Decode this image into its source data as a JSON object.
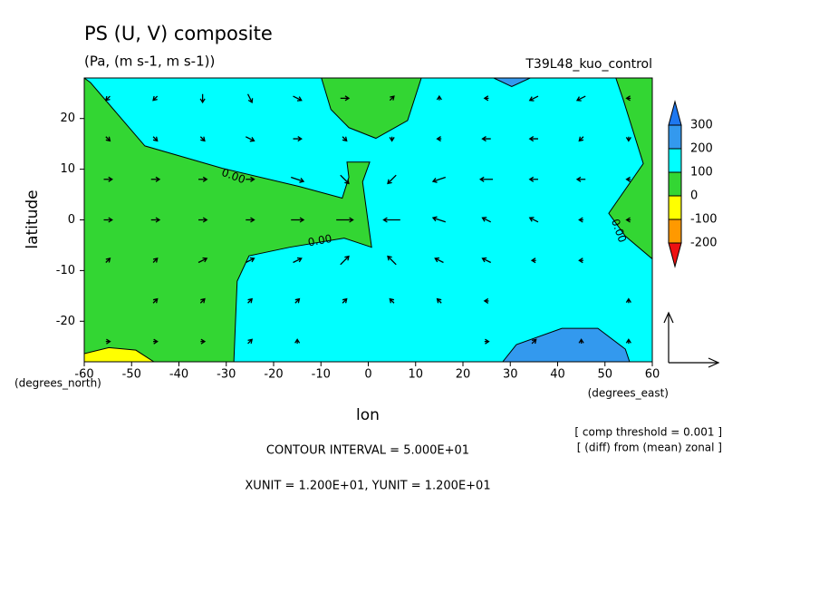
{
  "chart_data": {
    "type": "contour",
    "title": "PS (U, V) composite",
    "subtitle": "(Pa, (m s-1, m s-1))",
    "run": "T39L48_kuo_control",
    "x_label": "lon",
    "y_label": "latitude",
    "x_units": "(degrees_east)",
    "y_units": "(degrees_north)",
    "notes": [
      "[ comp threshold = 0.001 ]",
      "[ (diff) from (mean) zonal ]"
    ],
    "contour_interval": "CONTOUR INTERVAL = 5.000E+01",
    "vector_units": "XUNIT = 1.200E+01, YUNIT = 1.200E+01",
    "xlim": [
      -60,
      60
    ],
    "ylim": [
      -28,
      28
    ],
    "xticks": [
      -60,
      -50,
      -40,
      -30,
      -20,
      -10,
      0,
      10,
      20,
      30,
      40,
      50,
      60
    ],
    "yticks": [
      -20,
      -10,
      0,
      10,
      20
    ],
    "background_color": "#00ffff",
    "regions": [
      {
        "color": "#33d633",
        "lon": [
          -60,
          -58.7,
          -47.2,
          -30.9,
          -14.6,
          -5.5,
          -4.1,
          -4.5,
          0.3,
          -1.2,
          0.7,
          -5.1,
          -16.6,
          -25.2,
          -27.7,
          -28.4,
          -60
        ],
        "lat": [
          28,
          27.1,
          14.6,
          10.2,
          6.6,
          4.3,
          8.4,
          11.4,
          11.4,
          7.5,
          -5.4,
          -3.6,
          -5.4,
          -7.1,
          -12.1,
          -28,
          -28
        ]
      },
      {
        "color": "#33d633",
        "lon": [
          -9.9,
          -7.9,
          -4.1,
          1.6,
          8.3,
          11.2
        ],
        "lat": [
          28,
          21.8,
          18.2,
          16.1,
          19.6,
          28
        ]
      },
      {
        "color": "#33d633",
        "lon": [
          52.3,
          53.9,
          58.1,
          50.8,
          54.3,
          60,
          60
        ],
        "lat": [
          28,
          23.6,
          11.1,
          1.3,
          -3.2,
          -7.7,
          28
        ]
      },
      {
        "color": "#ffff00",
        "lon": [
          -60,
          -60,
          -54.8,
          -49.1,
          -45.3
        ],
        "lat": [
          -28,
          -26.4,
          -25.2,
          -25.7,
          -28
        ]
      },
      {
        "color": "#3399ee",
        "lon": [
          28.4,
          31.3,
          40.9,
          48.5,
          54.3,
          55.2
        ],
        "lat": [
          -28,
          -24.6,
          -21.4,
          -21.4,
          -25.5,
          -28
        ]
      },
      {
        "color": "#3399ee",
        "lon": [
          26.5,
          30.3,
          34.2
        ],
        "lat": [
          28,
          26.3,
          28
        ]
      }
    ],
    "contour_labels": [
      "0.00",
      "0.00",
      "0.00"
    ],
    "vectors": {
      "lon": [
        -55,
        -45,
        -35,
        -25,
        -15,
        -5,
        5,
        15,
        25,
        35,
        45,
        55
      ],
      "lat": [
        24,
        16,
        8,
        0,
        -8,
        -16,
        -24
      ],
      "u": [
        [
          -1,
          -1,
          0,
          1,
          2,
          2,
          1,
          0,
          -1,
          -2,
          -2,
          -1
        ],
        [
          1,
          1,
          1,
          2,
          2,
          1,
          0,
          -1,
          -2,
          -2,
          -1,
          0
        ],
        [
          2,
          2,
          2,
          2,
          3,
          2,
          -2,
          -3,
          -3,
          -2,
          -2,
          -1
        ],
        [
          2,
          2,
          2,
          2,
          3,
          4,
          -4,
          -3,
          -2,
          -2,
          -1,
          -1
        ],
        [
          1,
          1,
          2,
          2,
          2,
          2,
          -2,
          -2,
          -2,
          -1,
          -1,
          0
        ],
        [
          0,
          1,
          1,
          1,
          1,
          1,
          -1,
          -1,
          -1,
          0,
          0,
          0
        ],
        [
          1,
          1,
          1,
          1,
          0,
          0,
          0,
          0,
          1,
          1,
          0,
          0
        ]
      ],
      "v": [
        [
          -1,
          -1,
          -2,
          -2,
          -1,
          0,
          1,
          1,
          0,
          -1,
          -1,
          0
        ],
        [
          -1,
          -1,
          -1,
          -1,
          0,
          -1,
          -1,
          0,
          0,
          0,
          -1,
          -1
        ],
        [
          0,
          0,
          0,
          0,
          -1,
          -2,
          -2,
          -1,
          0,
          0,
          0,
          0
        ],
        [
          0,
          0,
          0,
          0,
          0,
          0,
          0,
          1,
          1,
          1,
          0,
          0
        ],
        [
          1,
          1,
          1,
          1,
          1,
          2,
          2,
          1,
          1,
          0,
          0,
          0
        ],
        [
          0,
          1,
          1,
          1,
          1,
          1,
          1,
          1,
          0,
          0,
          0,
          1
        ],
        [
          0,
          0,
          0,
          1,
          1,
          0,
          0,
          0,
          0,
          1,
          1,
          1
        ]
      ]
    },
    "colorbar": {
      "levels": [
        -200,
        -100,
        0,
        100,
        200,
        300
      ],
      "colors": [
        "#1e78f0",
        "#3399ee",
        "#00ffff",
        "#33d633",
        "#ffff00",
        "#ff9900",
        "#ee1111"
      ]
    }
  }
}
